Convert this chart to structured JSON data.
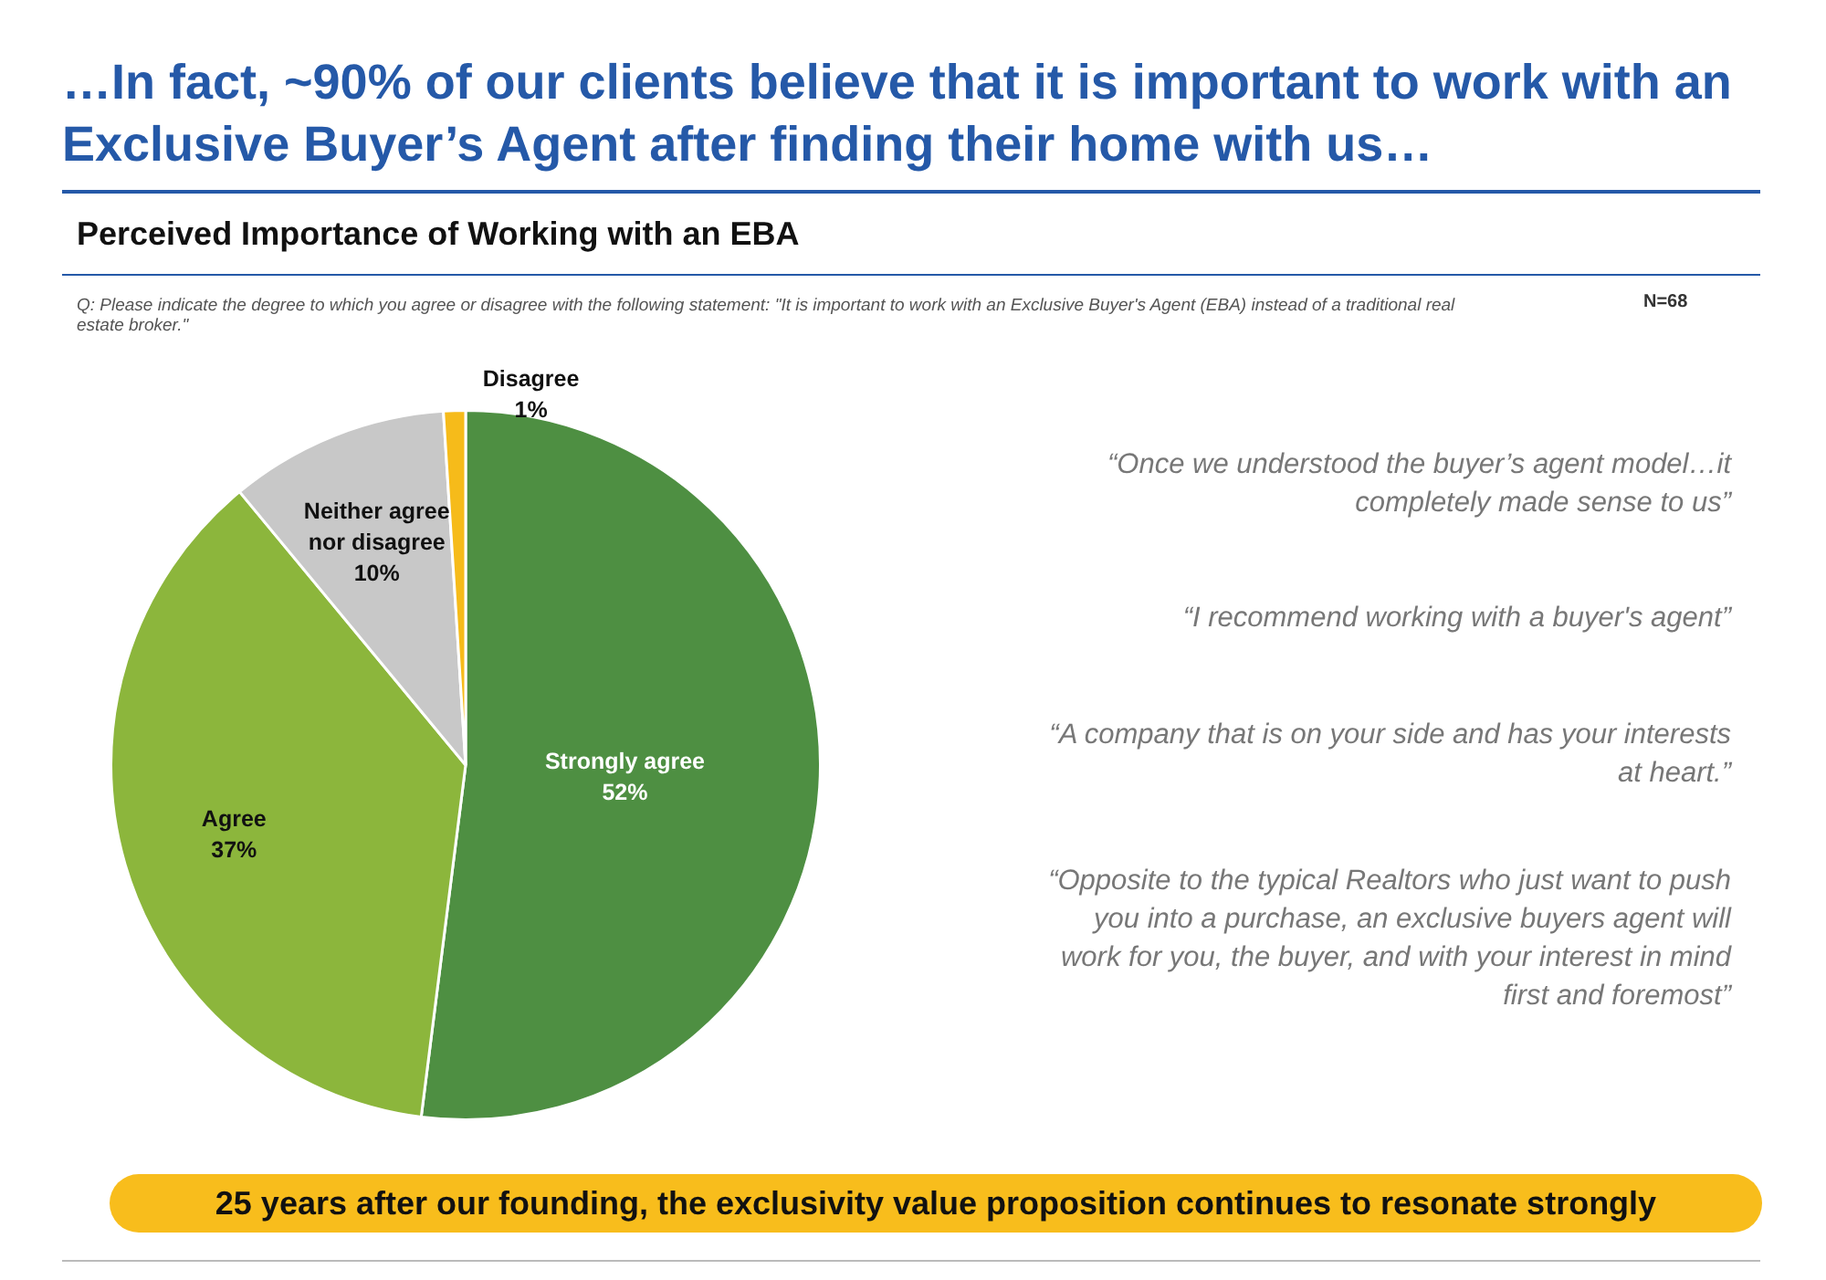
{
  "chart_data": {
    "type": "pie",
    "title": "…In fact, ~90% of our clients believe that it is important to work with an Exclusive Buyer’s Agent after finding their home with us…",
    "subtitle": "Perceived Importance of Working with an EBA",
    "categories": [
      "Strongly agree",
      "Agree",
      "Neither agree nor disagree",
      "Disagree"
    ],
    "values": [
      52,
      37,
      10,
      1
    ],
    "value_labels": [
      "52%",
      "37%",
      "10%",
      "1%"
    ],
    "colors": [
      "#4e8f42",
      "#8cb63c",
      "#c8c8c8",
      "#f6bb1a"
    ],
    "legend": false,
    "annotations": [
      "Q: Please indicate the degree to which you agree or disagree with the following statement: \"It is important to work with an Exclusive Buyer's Agent (EBA) instead of a traditional real estate broker.\"",
      "N=68",
      "“Once we understood the buyer’s agent model…it completely made sense to us”",
      "“I recommend working with a buyer's agent”",
      "“A company that is on your side and has your interests at heart.”",
      "“Opposite to the typical Realtors who just want to push you into a purchase, an exclusive buyers agent will work for you, the buyer, and with your interest in mind first and foremost”",
      "25 years after our founding, the exclusivity value proposition continues to resonate strongly"
    ]
  }
}
